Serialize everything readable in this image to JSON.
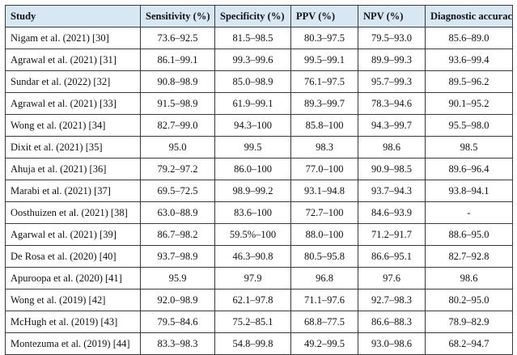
{
  "table": {
    "headers": [
      "Study",
      "Sensitivity (%)",
      "Specificity (%)",
      "PPV (%)",
      "NPV (%)",
      "Diagnostic accuracy (%)"
    ],
    "rows": [
      [
        "Nigam et al. (2021) [30]",
        "73.6–92.5",
        "81.5–98.5",
        "80.3–97.5",
        "79.5–93.0",
        "85.6–89.0"
      ],
      [
        "Agrawal et al. (2021) [31]",
        "86.1–99.1",
        "99.3–99.6",
        "99.5–99.1",
        "89.9–99.3",
        "93.6–99.4"
      ],
      [
        "Sundar et al. (2022) [32]",
        "90.8–98.9",
        "85.0–98.9",
        "76.1–97.5",
        "95.7–99.3",
        "89.5–96.2"
      ],
      [
        "Agrawal et al. (2021) [33]",
        "91.5–98.9",
        "61.9–99.1",
        "89.3–99.7",
        "78.3–94.6",
        "90.1–95.2"
      ],
      [
        "Wong et al. (2021) [34]",
        "82.7–99.0",
        "94.3–100",
        "85.8–100",
        "94.3–99.7",
        "95.5–98.0"
      ],
      [
        "Dixit et al. (2021) [35]",
        "95.0",
        "99.5",
        "98.3",
        "98.6",
        "98.5"
      ],
      [
        "Ahuja et al. (2021) [36]",
        "79.2–97.2",
        "86.0–100",
        "77.0–100",
        "90.9–98.5",
        "89.6–96.4"
      ],
      [
        "Marabi et al. (2021) [37]",
        "69.5–72.5",
        "98.9–99.2",
        "93.1–94.8",
        "93.7–94.3",
        "93.8–94.1"
      ],
      [
        "Oosthuizen et al. (2021) [38]",
        "63.0–88.9",
        "83.6–100",
        "72.7–100",
        "84.6–93.9",
        "-"
      ],
      [
        "Agarwal et al. (2021) [39]",
        "86.7–98.2",
        "59.5%–100",
        "88.0–100",
        "71.2–91.7",
        "88.6–95.0"
      ],
      [
        "De Rosa et al. (2020) [40]",
        "93.7–98.9",
        "46.3–90.8",
        "80.5–95.8",
        "86.6–95.1",
        "82.7–92.8"
      ],
      [
        "Apuroopa et al. (2020) [41]",
        "95.9",
        "97.9",
        "96.8",
        "97.6",
        "98.6"
      ],
      [
        "Wong et al. (2019) [42]",
        "92.0–98.9",
        "62.1–97.8",
        "71.1–97.6",
        "92.7–98.3",
        "80.2–95.0"
      ],
      [
        "McHugh et al. (2019) [43]",
        "79.5–84.6",
        "75.2–85.1",
        "68.8–77.5",
        "86.6–88.3",
        "78.9–82.9"
      ],
      [
        "Montezuma et al. (2019) [44]",
        "83.3–98.3",
        "54.8–99.8",
        "49.2–99.5",
        "93.0–98.6",
        "68.2–94.7"
      ]
    ]
  },
  "colors": {
    "header_bg": "#d7e7f3",
    "border": "#3a3a3a",
    "text": "#111111"
  }
}
